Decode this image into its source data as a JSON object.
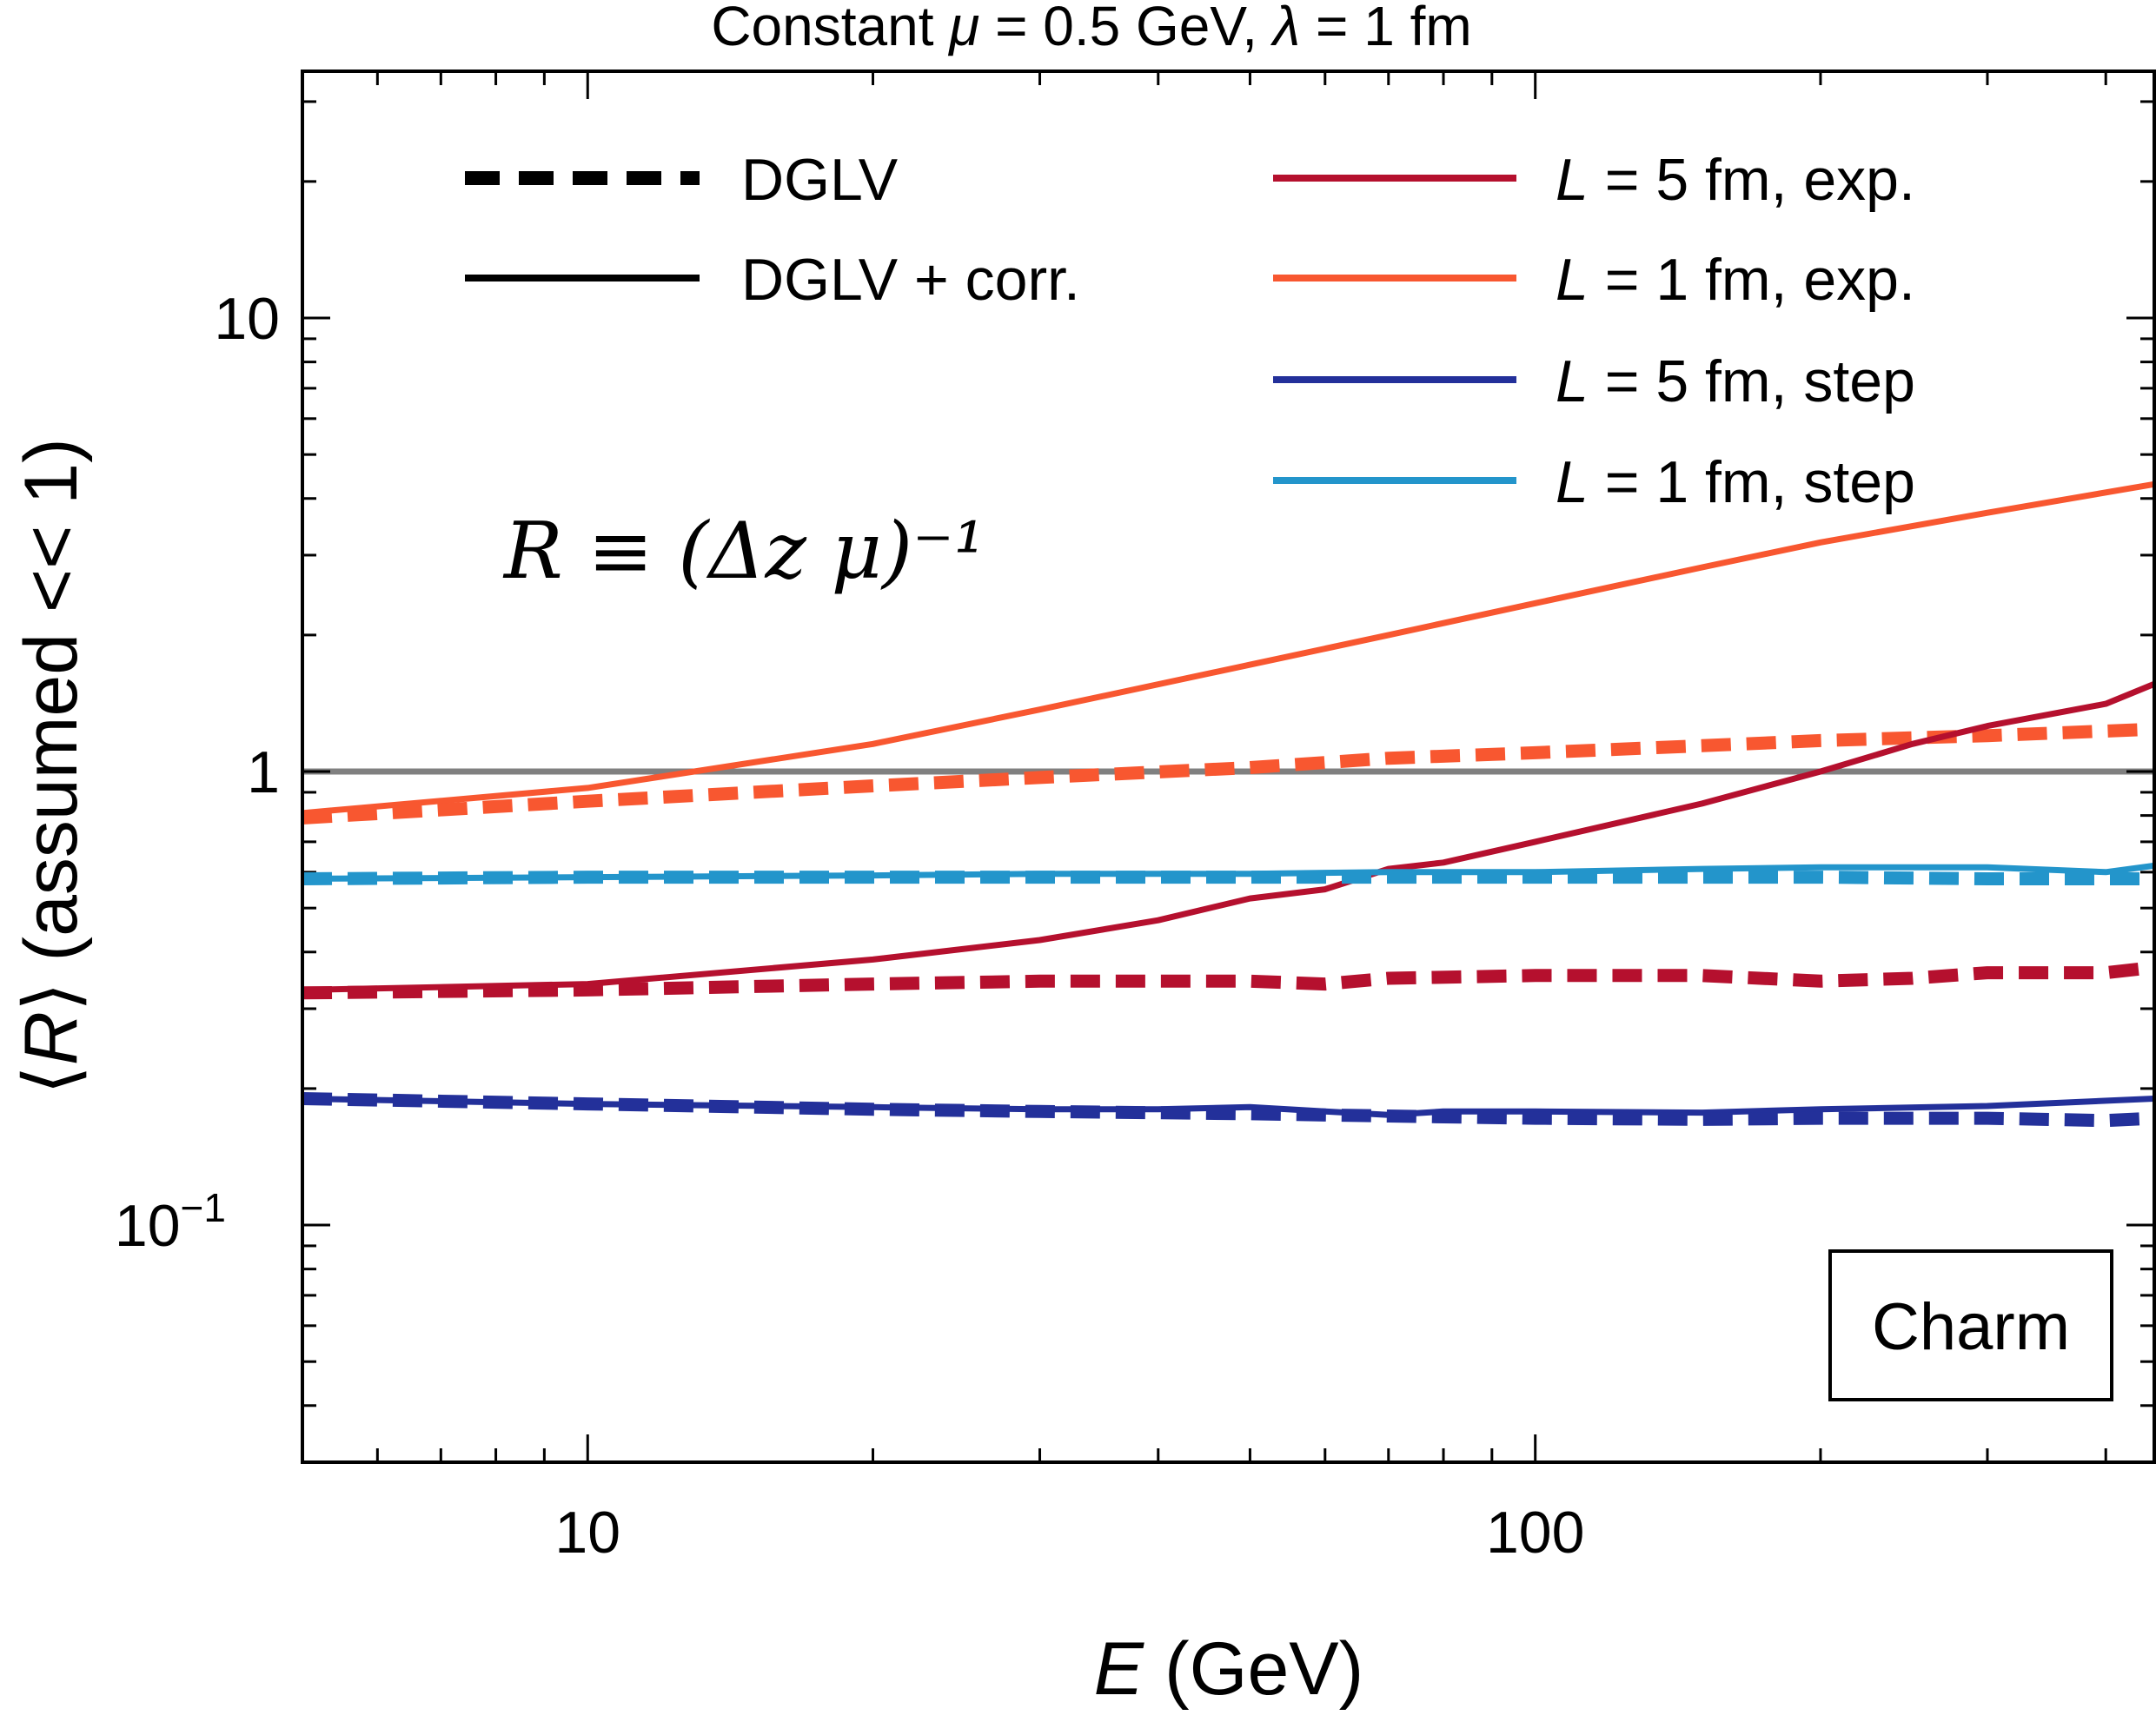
{
  "chart_data": {
    "type": "line",
    "title": "Constant μ = 0.5 GeV, λ = 1 fm",
    "title_parts": {
      "prefix": "Constant ",
      "mu": "μ",
      "mu_value": " = 0.5 GeV, ",
      "lambda": "λ",
      "lambda_value": " = 1 fm"
    },
    "xlabel": "E (GeV)",
    "xlabel_parts": {
      "var": "E",
      "unit": " (GeV)"
    },
    "ylabel": "⟨R⟩ (assumed << 1)",
    "ylabel_parts": {
      "open": "⟨",
      "var": "R",
      "close": "⟩",
      "rest": " (assumed << 1)"
    },
    "xscale": "log",
    "yscale": "log",
    "xlim": [
      5,
      450
    ],
    "ylim": [
      0.03,
      35
    ],
    "x_ticks": [
      {
        "value": 10,
        "label": "10"
      },
      {
        "value": 100,
        "label": "100"
      }
    ],
    "y_ticks": [
      {
        "value": 0.1,
        "label": "10",
        "exponent": "−1"
      },
      {
        "value": 1,
        "label": "1",
        "exponent": ""
      },
      {
        "value": 10,
        "label": "10",
        "exponent": ""
      }
    ],
    "reference_line": {
      "y": 1,
      "color": "#808080"
    },
    "annotation": "R ≡ (Δz μ)⁻¹",
    "badge": "Charm",
    "style_legend": [
      {
        "label": "DGLV",
        "style": "dashed"
      },
      {
        "label": "DGLV + corr.",
        "style": "solid"
      }
    ],
    "color_legend": [
      {
        "label_var": "L",
        "label_rest": " = 5 fm, exp.",
        "color": "#b5102e"
      },
      {
        "label_var": "L",
        "label_rest": " = 1 fm, exp.",
        "color": "#f85730"
      },
      {
        "label_var": "L",
        "label_rest": " = 5 fm, step",
        "color": "#23309a"
      },
      {
        "label_var": "L",
        "label_rest": " = 1 fm, step",
        "color": "#2395cb"
      }
    ],
    "series": [
      {
        "name": "L = 1 fm, exp. (DGLV + corr.)",
        "color": "#f85730",
        "style": "solid",
        "x": [
          5,
          10,
          20,
          30,
          50,
          70,
          100,
          150,
          200,
          300,
          450
        ],
        "y": [
          0.81,
          0.92,
          1.15,
          1.37,
          1.72,
          2.0,
          2.35,
          2.82,
          3.2,
          3.72,
          4.3
        ]
      },
      {
        "name": "L = 1 fm, exp. (DGLV)",
        "color": "#f85730",
        "style": "dashed",
        "x": [
          5,
          10,
          20,
          30,
          50,
          70,
          100,
          150,
          200,
          300,
          450
        ],
        "y": [
          0.79,
          0.86,
          0.93,
          0.97,
          1.02,
          1.07,
          1.1,
          1.14,
          1.17,
          1.2,
          1.24
        ]
      },
      {
        "name": "L = 5 fm, exp. (DGLV + corr.)",
        "color": "#b5102e",
        "style": "solid",
        "x": [
          5,
          10,
          20,
          30,
          40,
          50,
          60,
          70,
          80,
          100,
          150,
          200,
          250,
          300,
          400,
          450
        ],
        "y": [
          0.33,
          0.34,
          0.385,
          0.425,
          0.47,
          0.525,
          0.55,
          0.61,
          0.63,
          0.7,
          0.85,
          1.0,
          1.15,
          1.26,
          1.41,
          1.56
        ]
      },
      {
        "name": "L = 5 fm, exp. (DGLV)",
        "color": "#b5102e",
        "style": "dashed",
        "x": [
          5,
          10,
          20,
          30,
          50,
          60,
          70,
          100,
          150,
          200,
          250,
          300,
          400,
          450
        ],
        "y": [
          0.325,
          0.33,
          0.34,
          0.345,
          0.345,
          0.34,
          0.35,
          0.355,
          0.355,
          0.345,
          0.35,
          0.36,
          0.36,
          0.37
        ]
      },
      {
        "name": "L = 1 fm, step (DGLV + corr.)",
        "color": "#2395cb",
        "style": "solid",
        "x": [
          5,
          10,
          20,
          30,
          50,
          70,
          100,
          150,
          200,
          300,
          400,
          450
        ],
        "y": [
          0.58,
          0.585,
          0.59,
          0.595,
          0.595,
          0.6,
          0.6,
          0.61,
          0.615,
          0.615,
          0.6,
          0.62
        ]
      },
      {
        "name": "L = 1 fm, step (DGLV)",
        "color": "#2395cb",
        "style": "dashed",
        "x": [
          5,
          10,
          20,
          30,
          50,
          70,
          100,
          150,
          200,
          300,
          400,
          450
        ],
        "y": [
          0.58,
          0.585,
          0.585,
          0.585,
          0.585,
          0.585,
          0.585,
          0.585,
          0.585,
          0.58,
          0.58,
          0.58
        ]
      },
      {
        "name": "L = 5 fm, step (DGLV + corr.)",
        "color": "#23309a",
        "style": "solid",
        "x": [
          5,
          10,
          20,
          30,
          40,
          50,
          60,
          70,
          80,
          100,
          150,
          200,
          300,
          450
        ],
        "y": [
          0.19,
          0.185,
          0.182,
          0.18,
          0.18,
          0.182,
          0.178,
          0.175,
          0.178,
          0.178,
          0.177,
          0.18,
          0.183,
          0.19
        ]
      },
      {
        "name": "L = 5 fm, step (DGLV)",
        "color": "#23309a",
        "style": "dashed",
        "x": [
          5,
          10,
          20,
          30,
          50,
          70,
          100,
          150,
          200,
          300,
          400,
          450
        ],
        "y": [
          0.19,
          0.185,
          0.18,
          0.178,
          0.176,
          0.174,
          0.172,
          0.171,
          0.172,
          0.172,
          0.17,
          0.172
        ]
      }
    ]
  }
}
